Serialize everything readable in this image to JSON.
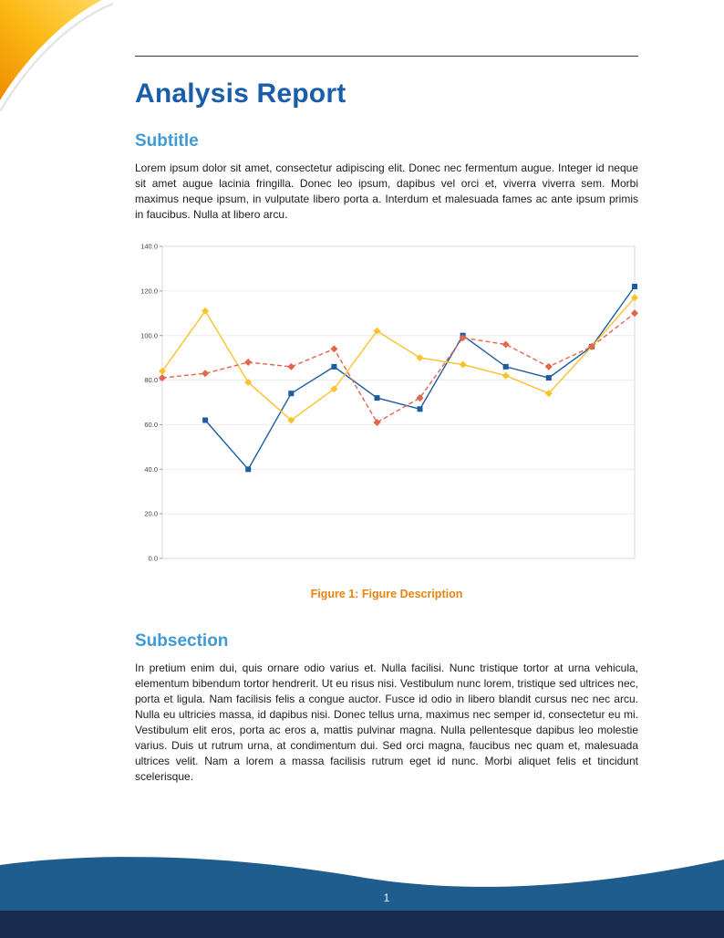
{
  "report": {
    "title": "Analysis Report",
    "sections": [
      {
        "heading": "Subtitle",
        "body": "Lorem ipsum dolor sit amet, consectetur adipiscing elit. Donec nec fermentum augue. Integer id neque sit amet augue lacinia fringilla. Donec leo ipsum, dapibus vel orci et, viverra viverra sem. Morbi maximus neque ipsum, in vulputate libero porta a. Interdum et malesuada fames ac ante ipsum primis in faucibus. Nulla at libero arcu."
      },
      {
        "heading": "Subsection",
        "body": "In pretium enim dui, quis ornare odio varius et. Nulla facilisi. Nunc tristique tortor at urna vehicula, elementum bibendum tortor hendrerit. Ut eu risus nisi. Vestibulum nunc lorem, tristique sed ultrices nec, porta et ligula. Nam facilisis felis a congue auctor. Fusce id odio in libero blandit cursus nec nec arcu. Nulla eu ultricies massa, id dapibus nisi. Donec tellus urna, maximus nec semper id, consectetur eu mi. Vestibulum elit eros, porta ac eros a, mattis pulvinar magna. Nulla pellentesque dapibus leo molestie varius. Duis ut rutrum urna, at condimentum dui. Sed orci magna, faucibus nec quam et, malesuada ultrices velit. Nam a lorem a massa facilisis rutrum eget id nunc. Morbi aliquet felis et tincidunt scelerisque."
      }
    ]
  },
  "figure": {
    "caption_label": "Figure 1:",
    "caption_text": "Figure Description",
    "chart_data": {
      "type": "line",
      "title": "",
      "xlabel": "",
      "ylabel": "",
      "x": [
        1,
        2,
        3,
        4,
        5,
        6,
        7,
        8,
        9,
        10,
        11,
        12
      ],
      "ylim": [
        0,
        140
      ],
      "ytick": 20,
      "ytick_labels": [
        "0.0",
        "20.0",
        "40.0",
        "60.0",
        "80.0",
        "100.0",
        "120.0",
        "140.0"
      ],
      "grid": true,
      "legend": "none",
      "series": [
        {
          "name": "blue",
          "color": "#1b5ca3",
          "style": "solid",
          "marker": "square",
          "values": [
            null,
            62,
            40,
            74,
            86,
            72,
            67,
            100,
            86,
            81,
            95,
            122
          ]
        },
        {
          "name": "yellow",
          "color": "#fdc12b",
          "style": "solid",
          "marker": "diamond",
          "values": [
            84,
            111,
            79,
            62,
            76,
            102,
            90,
            87,
            82,
            74,
            95,
            117
          ]
        },
        {
          "name": "red",
          "color": "#e2654d",
          "style": "dashed",
          "marker": "diamond",
          "values": [
            81,
            83,
            88,
            86,
            94,
            61,
            72,
            99,
            96,
            86,
            95,
            110
          ]
        }
      ]
    }
  },
  "footer": {
    "page_number": "1"
  },
  "colors": {
    "title_blue": "#1a5dab",
    "heading_blue": "#3e9bd6",
    "caption_orange": "#e8830e",
    "wave_blue": "#1f5d8f",
    "strip_navy": "#1a2b50",
    "swoosh_yellow": "#ffd75e",
    "swoosh_orange": "#f08c00"
  }
}
